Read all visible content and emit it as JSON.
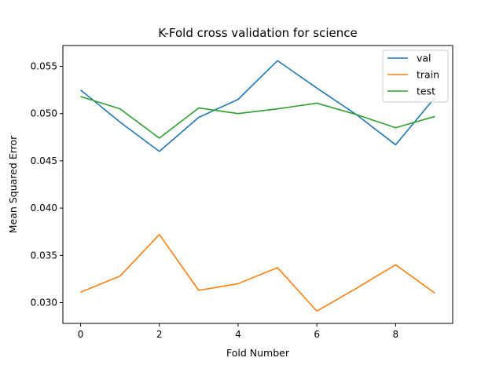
{
  "chart_data": {
    "type": "line",
    "title": "K-Fold cross validation for science",
    "xlabel": "Fold Number",
    "ylabel": "Mean Squared Error",
    "x": [
      0,
      1,
      2,
      3,
      4,
      5,
      6,
      7,
      8,
      9
    ],
    "xlim": [
      -0.45,
      9.45
    ],
    "ylim": [
      0.0278,
      0.0572
    ],
    "xticks": [
      0,
      2,
      4,
      6,
      8
    ],
    "xtick_labels": [
      "0",
      "2",
      "4",
      "6",
      "8"
    ],
    "yticks": [
      0.03,
      0.035,
      0.04,
      0.045,
      0.05,
      0.055
    ],
    "ytick_labels": [
      "0.030",
      "0.035",
      "0.040",
      "0.045",
      "0.050",
      "0.055"
    ],
    "grid": false,
    "legend_position": "top-right",
    "series": [
      {
        "name": "val",
        "color": "#1f77b4",
        "values": [
          0.0525,
          0.0491,
          0.046,
          0.0496,
          0.0515,
          0.0556,
          0.0527,
          0.0499,
          0.0467,
          0.0517
        ]
      },
      {
        "name": "train",
        "color": "#ff7f0e",
        "values": [
          0.0311,
          0.0328,
          0.0372,
          0.0313,
          0.032,
          0.0337,
          0.0291,
          0.0315,
          0.034,
          0.031
        ]
      },
      {
        "name": "test",
        "color": "#2ca02c",
        "values": [
          0.0518,
          0.0505,
          0.0474,
          0.0506,
          0.05,
          0.0505,
          0.0511,
          0.0499,
          0.0485,
          0.0497
        ]
      }
    ]
  }
}
